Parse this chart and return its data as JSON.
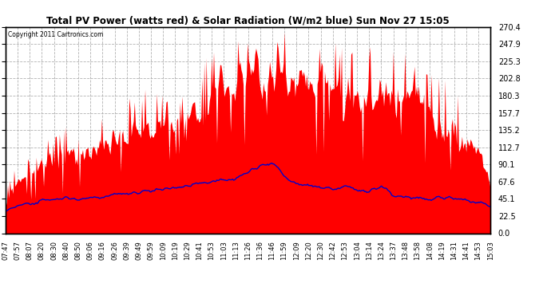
{
  "title": "Total PV Power (watts red) & Solar Radiation (W/m2 blue) Sun Nov 27 15:05",
  "copyright_text": "Copyright 2011 Cartronics.com",
  "ylim": [
    0.0,
    270.4
  ],
  "yticks": [
    0.0,
    22.5,
    45.1,
    67.6,
    90.1,
    112.7,
    135.2,
    157.7,
    180.3,
    202.8,
    225.3,
    247.9,
    270.4
  ],
  "bg_color": "#ffffff",
  "plot_bg_color": "#ffffff",
  "grid_color": "#aaaaaa",
  "red_color": "#ff0000",
  "blue_color": "#0000cc",
  "x_labels": [
    "07:47",
    "07:57",
    "08:07",
    "08:20",
    "08:30",
    "08:40",
    "08:50",
    "09:06",
    "09:16",
    "09:26",
    "09:39",
    "09:49",
    "09:59",
    "10:09",
    "10:19",
    "10:29",
    "10:41",
    "10:53",
    "11:03",
    "11:13",
    "11:26",
    "11:36",
    "11:46",
    "11:59",
    "12:09",
    "12:20",
    "12:30",
    "12:42",
    "12:53",
    "13:04",
    "13:14",
    "13:24",
    "13:37",
    "13:48",
    "13:58",
    "14:08",
    "14:19",
    "14:31",
    "14:41",
    "14:53",
    "15:03"
  ],
  "pv_envelope": [
    55,
    90,
    95,
    110,
    125,
    138,
    125,
    148,
    148,
    162,
    168,
    178,
    182,
    178,
    172,
    188,
    200,
    240,
    248,
    252,
    260,
    263,
    268,
    255,
    248,
    240,
    245,
    238,
    242,
    225,
    235,
    248,
    242,
    232,
    220,
    215,
    200,
    185,
    168,
    142,
    90
  ],
  "pv_floor": [
    30,
    55,
    60,
    65,
    70,
    75,
    68,
    80,
    80,
    88,
    95,
    100,
    105,
    105,
    100,
    108,
    125,
    145,
    148,
    148,
    155,
    155,
    158,
    148,
    142,
    138,
    140,
    132,
    135,
    122,
    128,
    138,
    132,
    125,
    115,
    108,
    100,
    90,
    82,
    68,
    45
  ],
  "solar_rad": [
    28,
    35,
    38,
    42,
    44,
    46,
    44,
    47,
    48,
    50,
    52,
    54,
    56,
    58,
    60,
    63,
    65,
    68,
    70,
    72,
    80,
    88,
    92,
    75,
    65,
    62,
    60,
    58,
    62,
    57,
    55,
    62,
    50,
    48,
    46,
    45,
    48,
    46,
    43,
    40,
    36
  ]
}
